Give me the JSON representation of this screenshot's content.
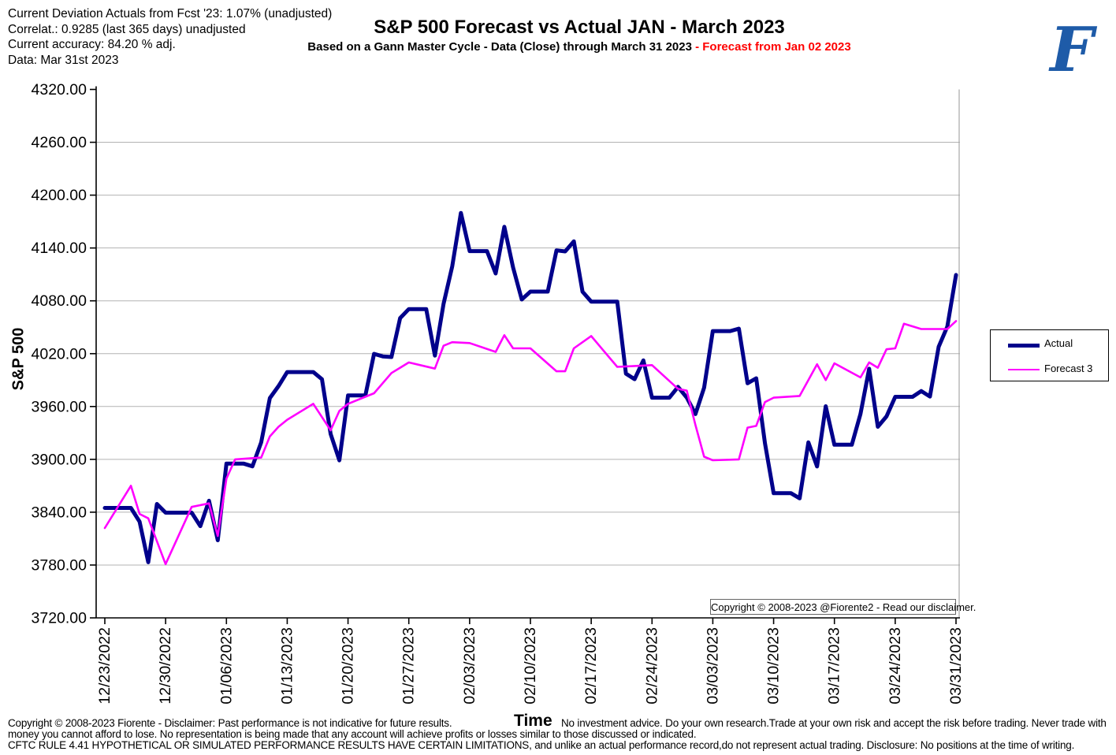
{
  "info_block": {
    "line1": "Current Deviation Actuals from Fcst '23: 1.07% (unadjusted)",
    "line2": "Correlat.: 0.9285 (last 365 days) unadjusted",
    "line3": "Current accuracy: 84.20 % adj.",
    "line4": "Data: Mar 31st 2023"
  },
  "header": {
    "title": "S&P 500 Forecast vs Actual JAN - March 2023",
    "subtitle_black": "Based on a Gann Master Cycle - Data (Close) through March 31 2023 ",
    "subtitle_red": "- Forecast  from Jan 02 2023",
    "logo_letter": "F",
    "logo_color": "#1e5ba8"
  },
  "chart_data": {
    "type": "line",
    "title": "S&P 500 Forecast vs Actual JAN - March 2023",
    "xlabel": "Time",
    "ylabel": "S&P 500",
    "ylim": [
      3720,
      4320
    ],
    "y_ticks": [
      4320,
      4260,
      4200,
      4140,
      4080,
      4020,
      3960,
      3900,
      3840,
      3780,
      3720
    ],
    "x_tick_labels": [
      "12/23/2022",
      "12/30/2022",
      "01/06/2023",
      "01/13/2023",
      "01/20/2023",
      "01/27/2023",
      "02/03/2023",
      "02/10/2023",
      "02/17/2023",
      "02/24/2023",
      "03/03/2023",
      "03/10/2023",
      "03/17/2023",
      "03/24/2023",
      "03/31/2023"
    ],
    "x_start_date": "2022-12-23",
    "x_end_date": "2023-03-31",
    "grid": "horizontal-only",
    "legend_position": "right-outside",
    "legend": [
      {
        "name": "Actual",
        "color": "#00008B",
        "width": 5
      },
      {
        "name": "Forecast 3",
        "color": "#FF00FF",
        "width": 2.6
      }
    ],
    "series": [
      {
        "name": "Actual",
        "weekend_fill": true,
        "dates": [
          "2022-12-23",
          "2022-12-27",
          "2022-12-28",
          "2022-12-29",
          "2022-12-30",
          "2023-01-03",
          "2023-01-04",
          "2023-01-05",
          "2023-01-06",
          "2023-01-09",
          "2023-01-10",
          "2023-01-11",
          "2023-01-12",
          "2023-01-13",
          "2023-01-17",
          "2023-01-18",
          "2023-01-19",
          "2023-01-20",
          "2023-01-23",
          "2023-01-24",
          "2023-01-25",
          "2023-01-26",
          "2023-01-27",
          "2023-01-30",
          "2023-01-31",
          "2023-02-01",
          "2023-02-02",
          "2023-02-03",
          "2023-02-06",
          "2023-02-07",
          "2023-02-08",
          "2023-02-09",
          "2023-02-10",
          "2023-02-13",
          "2023-02-14",
          "2023-02-15",
          "2023-02-16",
          "2023-02-17",
          "2023-02-21",
          "2023-02-22",
          "2023-02-23",
          "2023-02-24",
          "2023-02-27",
          "2023-02-28",
          "2023-03-01",
          "2023-03-02",
          "2023-03-03",
          "2023-03-06",
          "2023-03-07",
          "2023-03-08",
          "2023-03-09",
          "2023-03-10",
          "2023-03-13",
          "2023-03-14",
          "2023-03-15",
          "2023-03-16",
          "2023-03-17",
          "2023-03-20",
          "2023-03-21",
          "2023-03-22",
          "2023-03-23",
          "2023-03-24",
          "2023-03-27",
          "2023-03-28",
          "2023-03-29",
          "2023-03-30",
          "2023-03-31"
        ],
        "values": [
          3844.82,
          3829.25,
          3783.22,
          3849.28,
          3839.5,
          3824.14,
          3852.97,
          3808.1,
          3895.08,
          3892.09,
          3919.25,
          3969.61,
          3983.17,
          3999.09,
          3990.97,
          3928.86,
          3898.85,
          3972.61,
          4019.81,
          4016.95,
          4016.22,
          4060.43,
          4070.56,
          4017.77,
          4076.6,
          4119.21,
          4179.76,
          4136.48,
          4111.08,
          4164.0,
          4117.86,
          4081.5,
          4090.46,
          4137.29,
          4136.13,
          4147.6,
          4090.41,
          4079.09,
          3997.34,
          3991.05,
          4012.32,
          3970.04,
          3982.24,
          3970.15,
          3951.39,
          3981.35,
          4045.64,
          4048.42,
          3986.37,
          3992.01,
          3918.32,
          3861.59,
          3855.76,
          3919.29,
          3891.93,
          3960.28,
          3916.64,
          3951.57,
          4002.87,
          3936.97,
          3948.72,
          3970.99,
          3977.53,
          3971.27,
          4027.81,
          4050.83,
          4109.31
        ]
      },
      {
        "name": "Forecast 3",
        "weekend_fill": false,
        "dates": [
          "2022-12-23",
          "2022-12-26",
          "2022-12-27",
          "2022-12-28",
          "2022-12-30",
          "2023-01-02",
          "2023-01-04",
          "2023-01-05",
          "2023-01-06",
          "2023-01-07",
          "2023-01-10",
          "2023-01-11",
          "2023-01-12",
          "2023-01-13",
          "2023-01-16",
          "2023-01-18",
          "2023-01-19",
          "2023-01-20",
          "2023-01-23",
          "2023-01-25",
          "2023-01-27",
          "2023-01-30",
          "2023-01-31",
          "2023-02-01",
          "2023-02-03",
          "2023-02-06",
          "2023-02-07",
          "2023-02-08",
          "2023-02-10",
          "2023-02-13",
          "2023-02-14",
          "2023-02-15",
          "2023-02-17",
          "2023-02-20",
          "2023-02-22",
          "2023-02-24",
          "2023-02-27",
          "2023-02-28",
          "2023-03-01",
          "2023-03-02",
          "2023-03-03",
          "2023-03-06",
          "2023-03-07",
          "2023-03-08",
          "2023-03-09",
          "2023-03-10",
          "2023-03-13",
          "2023-03-14",
          "2023-03-15",
          "2023-03-16",
          "2023-03-17",
          "2023-03-20",
          "2023-03-21",
          "2023-03-22",
          "2023-03-23",
          "2023-03-24",
          "2023-03-25",
          "2023-03-27",
          "2023-03-30",
          "2023-03-31"
        ],
        "values": [
          3822,
          3870,
          3838,
          3833,
          3781,
          3846,
          3850,
          3813,
          3878,
          3900,
          3902,
          3926,
          3937,
          3945,
          3963,
          3933,
          3955,
          3963,
          3975,
          3998,
          4010,
          4003,
          4029,
          4033,
          4032,
          4022,
          4041,
          4026,
          4026,
          4000,
          4000,
          4026,
          4040,
          4005,
          4006,
          4007,
          3980,
          3978,
          3939,
          3903,
          3899,
          3900,
          3936,
          3938,
          3965,
          3970,
          3972,
          3990,
          4008,
          3990,
          4009,
          3993,
          4010,
          4004,
          4025,
          4026,
          4054,
          4048,
          4048,
          4057
        ]
      }
    ],
    "copyright_note": "Copyright © 2008-2023 @Fiorente2 -  Read our disclaimer.",
    "colors": {
      "grid": "#b3b3b3",
      "axis": "#000000",
      "plot_right_border": "#a6a6a6"
    }
  },
  "footer": {
    "line1_left": "Copyright © 2008-2023 Fiorente -  Disclaimer: Past performance is not indicative for future results.",
    "line1_right": "No investment advice. Do your own research.Trade at your own risk and accept the risk before trading. Never trade with",
    "line2": "money you cannot afford to lose. No representation is being made that any account will achieve profits or losses similar to those discussed or indicated.",
    "line3": "CFTC RULE 4.41 HYPOTHETICAL OR SIMULATED PERFORMANCE RESULTS HAVE CERTAIN LIMITATIONS, and unlike an actual performance record,do not represent actual trading. Disclosure: No positions at the time of writing."
  }
}
